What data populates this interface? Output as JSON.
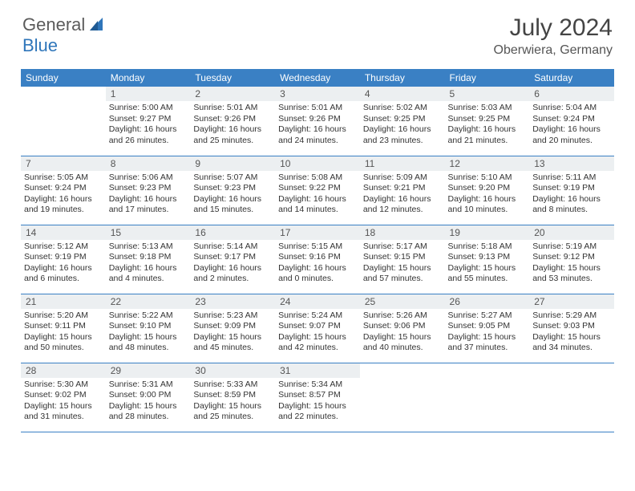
{
  "logo": {
    "general": "General",
    "blue": "Blue"
  },
  "title": {
    "month": "July 2024",
    "location": "Oberwiera, Germany"
  },
  "weekdays": [
    "Sunday",
    "Monday",
    "Tuesday",
    "Wednesday",
    "Thursday",
    "Friday",
    "Saturday"
  ],
  "colors": {
    "header_bg": "#3a80c4",
    "header_text": "#ffffff",
    "daynum_bg": "#eceff1",
    "row_border": "#3a80c4",
    "logo_blue": "#2f76ba",
    "logo_gray": "#5b5b5b",
    "body_bg": "#ffffff"
  },
  "days": {
    "d1": {
      "num": "1",
      "sunrise": "Sunrise: 5:00 AM",
      "sunset": "Sunset: 9:27 PM",
      "day1": "Daylight: 16 hours",
      "day2": "and 26 minutes."
    },
    "d2": {
      "num": "2",
      "sunrise": "Sunrise: 5:01 AM",
      "sunset": "Sunset: 9:26 PM",
      "day1": "Daylight: 16 hours",
      "day2": "and 25 minutes."
    },
    "d3": {
      "num": "3",
      "sunrise": "Sunrise: 5:01 AM",
      "sunset": "Sunset: 9:26 PM",
      "day1": "Daylight: 16 hours",
      "day2": "and 24 minutes."
    },
    "d4": {
      "num": "4",
      "sunrise": "Sunrise: 5:02 AM",
      "sunset": "Sunset: 9:25 PM",
      "day1": "Daylight: 16 hours",
      "day2": "and 23 minutes."
    },
    "d5": {
      "num": "5",
      "sunrise": "Sunrise: 5:03 AM",
      "sunset": "Sunset: 9:25 PM",
      "day1": "Daylight: 16 hours",
      "day2": "and 21 minutes."
    },
    "d6": {
      "num": "6",
      "sunrise": "Sunrise: 5:04 AM",
      "sunset": "Sunset: 9:24 PM",
      "day1": "Daylight: 16 hours",
      "day2": "and 20 minutes."
    },
    "d7": {
      "num": "7",
      "sunrise": "Sunrise: 5:05 AM",
      "sunset": "Sunset: 9:24 PM",
      "day1": "Daylight: 16 hours",
      "day2": "and 19 minutes."
    },
    "d8": {
      "num": "8",
      "sunrise": "Sunrise: 5:06 AM",
      "sunset": "Sunset: 9:23 PM",
      "day1": "Daylight: 16 hours",
      "day2": "and 17 minutes."
    },
    "d9": {
      "num": "9",
      "sunrise": "Sunrise: 5:07 AM",
      "sunset": "Sunset: 9:23 PM",
      "day1": "Daylight: 16 hours",
      "day2": "and 15 minutes."
    },
    "d10": {
      "num": "10",
      "sunrise": "Sunrise: 5:08 AM",
      "sunset": "Sunset: 9:22 PM",
      "day1": "Daylight: 16 hours",
      "day2": "and 14 minutes."
    },
    "d11": {
      "num": "11",
      "sunrise": "Sunrise: 5:09 AM",
      "sunset": "Sunset: 9:21 PM",
      "day1": "Daylight: 16 hours",
      "day2": "and 12 minutes."
    },
    "d12": {
      "num": "12",
      "sunrise": "Sunrise: 5:10 AM",
      "sunset": "Sunset: 9:20 PM",
      "day1": "Daylight: 16 hours",
      "day2": "and 10 minutes."
    },
    "d13": {
      "num": "13",
      "sunrise": "Sunrise: 5:11 AM",
      "sunset": "Sunset: 9:19 PM",
      "day1": "Daylight: 16 hours",
      "day2": "and 8 minutes."
    },
    "d14": {
      "num": "14",
      "sunrise": "Sunrise: 5:12 AM",
      "sunset": "Sunset: 9:19 PM",
      "day1": "Daylight: 16 hours",
      "day2": "and 6 minutes."
    },
    "d15": {
      "num": "15",
      "sunrise": "Sunrise: 5:13 AM",
      "sunset": "Sunset: 9:18 PM",
      "day1": "Daylight: 16 hours",
      "day2": "and 4 minutes."
    },
    "d16": {
      "num": "16",
      "sunrise": "Sunrise: 5:14 AM",
      "sunset": "Sunset: 9:17 PM",
      "day1": "Daylight: 16 hours",
      "day2": "and 2 minutes."
    },
    "d17": {
      "num": "17",
      "sunrise": "Sunrise: 5:15 AM",
      "sunset": "Sunset: 9:16 PM",
      "day1": "Daylight: 16 hours",
      "day2": "and 0 minutes."
    },
    "d18": {
      "num": "18",
      "sunrise": "Sunrise: 5:17 AM",
      "sunset": "Sunset: 9:15 PM",
      "day1": "Daylight: 15 hours",
      "day2": "and 57 minutes."
    },
    "d19": {
      "num": "19",
      "sunrise": "Sunrise: 5:18 AM",
      "sunset": "Sunset: 9:13 PM",
      "day1": "Daylight: 15 hours",
      "day2": "and 55 minutes."
    },
    "d20": {
      "num": "20",
      "sunrise": "Sunrise: 5:19 AM",
      "sunset": "Sunset: 9:12 PM",
      "day1": "Daylight: 15 hours",
      "day2": "and 53 minutes."
    },
    "d21": {
      "num": "21",
      "sunrise": "Sunrise: 5:20 AM",
      "sunset": "Sunset: 9:11 PM",
      "day1": "Daylight: 15 hours",
      "day2": "and 50 minutes."
    },
    "d22": {
      "num": "22",
      "sunrise": "Sunrise: 5:22 AM",
      "sunset": "Sunset: 9:10 PM",
      "day1": "Daylight: 15 hours",
      "day2": "and 48 minutes."
    },
    "d23": {
      "num": "23",
      "sunrise": "Sunrise: 5:23 AM",
      "sunset": "Sunset: 9:09 PM",
      "day1": "Daylight: 15 hours",
      "day2": "and 45 minutes."
    },
    "d24": {
      "num": "24",
      "sunrise": "Sunrise: 5:24 AM",
      "sunset": "Sunset: 9:07 PM",
      "day1": "Daylight: 15 hours",
      "day2": "and 42 minutes."
    },
    "d25": {
      "num": "25",
      "sunrise": "Sunrise: 5:26 AM",
      "sunset": "Sunset: 9:06 PM",
      "day1": "Daylight: 15 hours",
      "day2": "and 40 minutes."
    },
    "d26": {
      "num": "26",
      "sunrise": "Sunrise: 5:27 AM",
      "sunset": "Sunset: 9:05 PM",
      "day1": "Daylight: 15 hours",
      "day2": "and 37 minutes."
    },
    "d27": {
      "num": "27",
      "sunrise": "Sunrise: 5:29 AM",
      "sunset": "Sunset: 9:03 PM",
      "day1": "Daylight: 15 hours",
      "day2": "and 34 minutes."
    },
    "d28": {
      "num": "28",
      "sunrise": "Sunrise: 5:30 AM",
      "sunset": "Sunset: 9:02 PM",
      "day1": "Daylight: 15 hours",
      "day2": "and 31 minutes."
    },
    "d29": {
      "num": "29",
      "sunrise": "Sunrise: 5:31 AM",
      "sunset": "Sunset: 9:00 PM",
      "day1": "Daylight: 15 hours",
      "day2": "and 28 minutes."
    },
    "d30": {
      "num": "30",
      "sunrise": "Sunrise: 5:33 AM",
      "sunset": "Sunset: 8:59 PM",
      "day1": "Daylight: 15 hours",
      "day2": "and 25 minutes."
    },
    "d31": {
      "num": "31",
      "sunrise": "Sunrise: 5:34 AM",
      "sunset": "Sunset: 8:57 PM",
      "day1": "Daylight: 15 hours",
      "day2": "and 22 minutes."
    }
  },
  "layout": [
    [
      null,
      "d1",
      "d2",
      "d3",
      "d4",
      "d5",
      "d6"
    ],
    [
      "d7",
      "d8",
      "d9",
      "d10",
      "d11",
      "d12",
      "d13"
    ],
    [
      "d14",
      "d15",
      "d16",
      "d17",
      "d18",
      "d19",
      "d20"
    ],
    [
      "d21",
      "d22",
      "d23",
      "d24",
      "d25",
      "d26",
      "d27"
    ],
    [
      "d28",
      "d29",
      "d30",
      "d31",
      null,
      null,
      null
    ]
  ]
}
